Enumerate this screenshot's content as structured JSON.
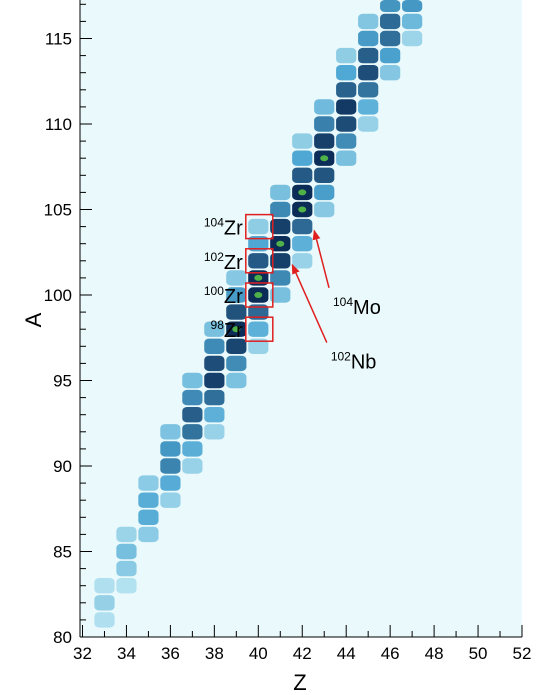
{
  "chart_data": {
    "type": "heatmap",
    "title": "",
    "xlabel": "Z",
    "ylabel": "A",
    "xlim": [
      32,
      52
    ],
    "ylim": [
      80,
      117
    ],
    "x_ticks": [
      32,
      34,
      36,
      38,
      40,
      42,
      44,
      46,
      48,
      50,
      52
    ],
    "y_ticks": [
      80,
      85,
      90,
      95,
      100,
      105,
      110,
      115
    ],
    "colors": {
      "background": "#eaf9fb",
      "low": "#c4ebf4",
      "mid": "#4fa8d4",
      "high": "#0b2c56",
      "peak": "#4fb148",
      "box": "#e02020",
      "arrow": "#e02020"
    },
    "ridge": {
      "z": [
        33,
        34,
        35,
        36,
        37,
        38,
        39,
        40,
        41,
        42,
        43,
        44,
        45,
        46,
        47
      ],
      "a_center": [
        82,
        84.8,
        87.5,
        90.2,
        92.8,
        95.3,
        97.9,
        100.6,
        103,
        105.6,
        108.2,
        110.8,
        113.2,
        115.6,
        117.6
      ],
      "a_halfwidth": [
        1.2,
        1.8,
        2.2,
        2.6,
        3.0,
        3.4,
        3.5,
        3.6,
        3.6,
        3.6,
        3.6,
        3.5,
        3.4,
        3.3,
        3.0
      ],
      "peak_intensity": [
        0.18,
        0.3,
        0.45,
        0.6,
        0.75,
        0.88,
        0.95,
        1.0,
        1.0,
        1.0,
        0.95,
        0.9,
        0.82,
        0.72,
        0.55
      ]
    },
    "annotations": [
      {
        "kind": "box",
        "sup": "104",
        "label": "Zr",
        "z": 40,
        "a": 104
      },
      {
        "kind": "box",
        "sup": "102",
        "label": "Zr",
        "z": 40,
        "a": 102
      },
      {
        "kind": "box",
        "sup": "100",
        "label": "Zr",
        "z": 40,
        "a": 100
      },
      {
        "kind": "box",
        "sup": "98",
        "label": "Zr",
        "z": 40,
        "a": 98
      },
      {
        "kind": "arrow",
        "sup": "104",
        "label": "Mo",
        "z": 42,
        "a": 104,
        "text_z": 43.4,
        "text_a": 99.6
      },
      {
        "kind": "arrow",
        "sup": "102",
        "label": "Nb",
        "z": 41,
        "a": 102,
        "text_z": 43.3,
        "text_a": 96.4
      }
    ]
  }
}
